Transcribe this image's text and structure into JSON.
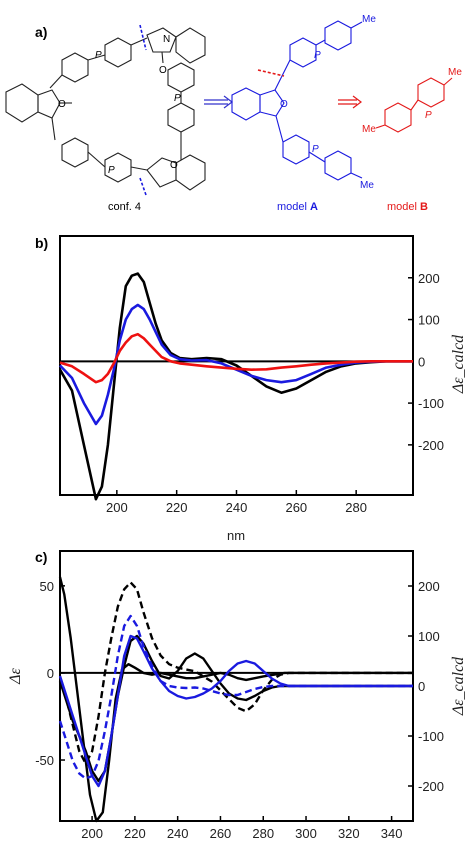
{
  "panel_a": {
    "label": "a)",
    "captions": [
      {
        "text": "conf. 4",
        "color": "#000000",
        "bold": ""
      },
      {
        "text": "model ",
        "color": "#1a1adf",
        "bold": "A"
      },
      {
        "text": "model ",
        "color": "#e41a1a",
        "bold": "B"
      }
    ],
    "atom_labels": {
      "me": "Me",
      "n": "N",
      "o": "O",
      "p": "P"
    },
    "arrow_color": "#3333cc",
    "arrow2_color": "#e41a1a"
  },
  "colors": {
    "black": "#000000",
    "blue": "#1a1adf",
    "red": "#ee1111"
  },
  "chart_data": [
    {
      "type": "line",
      "panel_label": "b)",
      "xlabel": "nm",
      "ylabel_right": "Δε_calcd",
      "xlim": [
        181,
        299
      ],
      "ylim_right": [
        -320,
        300
      ],
      "x_ticks": [
        200,
        220,
        240,
        260,
        280
      ],
      "y_ticks_right": [
        200,
        100,
        0,
        -100,
        -200
      ],
      "grid": false,
      "series": [
        {
          "color": "#000000",
          "x": [
            181,
            185,
            189,
            193,
            195,
            197,
            199,
            201,
            203,
            205,
            207,
            209,
            211,
            213,
            215,
            218,
            221,
            225,
            230,
            235,
            240,
            245,
            250,
            255,
            260,
            265,
            270,
            275,
            280,
            285,
            290,
            295,
            299
          ],
          "y": [
            -20,
            -70,
            -200,
            -330,
            -300,
            -200,
            -60,
            80,
            180,
            205,
            210,
            190,
            140,
            90,
            50,
            20,
            8,
            5,
            8,
            5,
            -10,
            -35,
            -60,
            -75,
            -65,
            -45,
            -25,
            -12,
            -5,
            -2,
            0,
            0,
            0
          ]
        },
        {
          "color": "#1a1adf",
          "x": [
            181,
            185,
            189,
            193,
            195,
            197,
            199,
            201,
            203,
            205,
            207,
            209,
            211,
            213,
            215,
            218,
            221,
            225,
            230,
            235,
            240,
            245,
            250,
            255,
            260,
            265,
            270,
            275,
            280,
            285,
            290,
            295,
            299
          ],
          "y": [
            -10,
            -40,
            -100,
            -150,
            -130,
            -80,
            -20,
            50,
            100,
            125,
            135,
            125,
            100,
            70,
            40,
            15,
            5,
            2,
            3,
            -5,
            -20,
            -35,
            -45,
            -50,
            -45,
            -30,
            -15,
            -8,
            -3,
            -1,
            0,
            0,
            0
          ]
        },
        {
          "color": "#ee1111",
          "x": [
            181,
            185,
            189,
            193,
            195,
            197,
            199,
            201,
            203,
            205,
            207,
            209,
            211,
            213,
            215,
            218,
            221,
            225,
            230,
            235,
            240,
            245,
            250,
            255,
            260,
            265,
            270,
            275,
            280,
            285,
            290,
            295,
            299
          ],
          "y": [
            -3,
            -12,
            -30,
            -50,
            -45,
            -30,
            -5,
            25,
            45,
            60,
            65,
            55,
            40,
            25,
            10,
            0,
            -5,
            -8,
            -12,
            -15,
            -18,
            -20,
            -19,
            -15,
            -12,
            -8,
            -5,
            -3,
            -1,
            0,
            0,
            0,
            0
          ]
        }
      ]
    },
    {
      "type": "line",
      "panel_label": "c)",
      "xlabel": "",
      "ylabel_left": "Δε",
      "ylabel_right": "Δε_calcd",
      "xlim": [
        185,
        350
      ],
      "ylim_left": [
        -85,
        70
      ],
      "ylim_right": [
        -270,
        270
      ],
      "x_ticks": [
        200,
        220,
        240,
        260,
        280,
        300,
        320,
        340
      ],
      "y_ticks_left": [
        50,
        0,
        -50
      ],
      "y_ticks_right": [
        200,
        100,
        0,
        -100,
        -200
      ],
      "grid": false,
      "series": [
        {
          "color": "#000000",
          "style": "solid",
          "axis": "left",
          "x": [
            185,
            187,
            190,
            193,
            196,
            199,
            202,
            205,
            208,
            211,
            214,
            217,
            220,
            224,
            228,
            232,
            236,
            240,
            244,
            248,
            252,
            256,
            260,
            264,
            268,
            272,
            276,
            280,
            285,
            290,
            295,
            300,
            310,
            320,
            330,
            340,
            350
          ],
          "y": [
            55,
            45,
            20,
            -10,
            -40,
            -70,
            -85,
            -80,
            -50,
            -15,
            2,
            5,
            3,
            0,
            -1,
            0,
            -1,
            -2,
            -3,
            -3,
            -2,
            -1,
            0,
            -1,
            -3,
            -4,
            -3,
            -2,
            -1,
            0,
            0,
            0,
            0,
            0,
            0,
            0,
            0
          ]
        },
        {
          "color": "#000000",
          "style": "dashed",
          "axis": "left",
          "x": [
            185,
            188,
            191,
            194,
            197,
            200,
            203,
            206,
            209,
            212,
            215,
            218,
            221,
            224,
            228,
            232,
            236,
            240,
            244,
            248,
            252,
            256,
            260,
            264,
            268,
            272,
            276,
            280,
            284,
            288,
            292,
            296,
            300,
            310,
            320,
            330,
            340,
            350
          ],
          "y": [
            -5,
            -15,
            -30,
            -45,
            -52,
            -45,
            -25,
            0,
            20,
            38,
            48,
            52,
            48,
            35,
            20,
            10,
            5,
            3,
            2,
            1,
            -2,
            -5,
            -10,
            -15,
            -20,
            -22,
            -18,
            -10,
            -4,
            -1,
            0,
            0,
            0,
            0,
            0,
            0,
            0,
            0
          ]
        },
        {
          "color": "#000000",
          "style": "solid",
          "axis": "right",
          "x": [
            185,
            188,
            191,
            194,
            197,
            200,
            203,
            206,
            209,
            212,
            215,
            218,
            221,
            224,
            228,
            232,
            236,
            240,
            244,
            248,
            252,
            256,
            260,
            264,
            268,
            272,
            276,
            280,
            284,
            288,
            292,
            296,
            300,
            310,
            320,
            330,
            340,
            350
          ],
          "y": [
            10,
            -30,
            -70,
            -100,
            -130,
            -170,
            -190,
            -170,
            -100,
            -20,
            40,
            90,
            100,
            85,
            50,
            20,
            15,
            30,
            55,
            65,
            55,
            30,
            5,
            -15,
            -25,
            -28,
            -20,
            -10,
            -3,
            0,
            0,
            0,
            0,
            0,
            0,
            0,
            0,
            0
          ]
        },
        {
          "color": "#1a1adf",
          "style": "solid",
          "axis": "right",
          "x": [
            185,
            188,
            191,
            194,
            197,
            200,
            203,
            206,
            209,
            212,
            215,
            218,
            221,
            224,
            228,
            232,
            236,
            240,
            244,
            248,
            252,
            256,
            260,
            264,
            268,
            272,
            276,
            280,
            284,
            288,
            292,
            296,
            300,
            310,
            320,
            330,
            340,
            350
          ],
          "y": [
            20,
            -20,
            -60,
            -100,
            -140,
            -180,
            -200,
            -170,
            -100,
            -20,
            60,
            100,
            95,
            70,
            35,
            10,
            -10,
            -20,
            -25,
            -22,
            -15,
            -5,
            10,
            30,
            45,
            50,
            45,
            30,
            15,
            5,
            0,
            0,
            0,
            0,
            0,
            0,
            0,
            0
          ]
        },
        {
          "color": "#1a1adf",
          "style": "dashed",
          "axis": "right",
          "x": [
            185,
            188,
            191,
            194,
            197,
            200,
            203,
            206,
            209,
            212,
            215,
            218,
            221,
            224,
            228,
            232,
            236,
            240,
            244,
            248,
            252,
            256,
            260,
            264,
            268,
            272,
            276,
            280,
            284,
            288,
            292,
            296,
            300,
            310,
            320,
            330,
            340,
            350
          ],
          "y": [
            -70,
            -110,
            -150,
            -175,
            -185,
            -180,
            -150,
            -90,
            -20,
            60,
            120,
            140,
            120,
            80,
            40,
            10,
            0,
            -3,
            -4,
            -3,
            -5,
            -10,
            -15,
            -18,
            -18,
            -12,
            -6,
            -2,
            0,
            0,
            0,
            0,
            0,
            0,
            0,
            0,
            0,
            0
          ]
        }
      ]
    }
  ]
}
